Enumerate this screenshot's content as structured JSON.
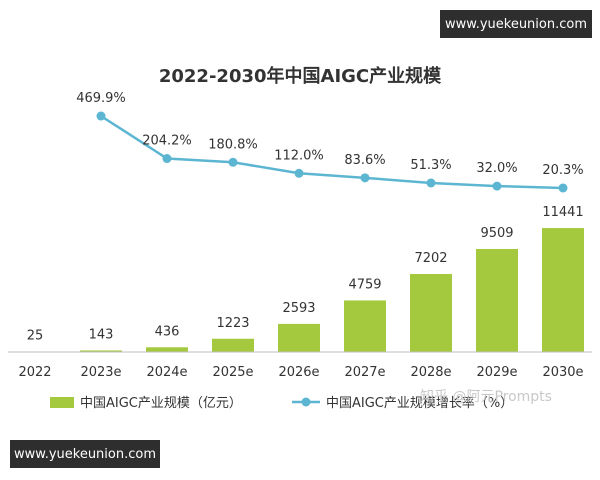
{
  "watermark_top": "www.yuekeunion.com",
  "watermark_bottom": "www.yuekeunion.com",
  "watermark_zhihu": "知乎 @阿元Prompts",
  "colors": {
    "bar": "#a5c93e",
    "line": "#5cb6d2",
    "text": "#333333",
    "axis": "#bfbfbf"
  },
  "chart_data": {
    "type": "bar",
    "title": "2022-2030年中国AIGC产业规模",
    "categories": [
      "2022",
      "2023e",
      "2024e",
      "2025e",
      "2026e",
      "2027e",
      "2028e",
      "2029e",
      "2030e"
    ],
    "series": [
      {
        "name": "中国AIGC产业规模（亿元）",
        "type": "bar",
        "values": [
          25,
          143,
          436,
          1223,
          2593,
          4759,
          7202,
          9509,
          11441
        ]
      },
      {
        "name": "中国AIGC产业规模增长率（%）",
        "type": "line",
        "values": [
          null,
          469.9,
          204.2,
          180.8,
          112.0,
          83.6,
          51.3,
          32.0,
          20.3
        ]
      }
    ],
    "bar_labels": [
      "25",
      "143",
      "436",
      "1223",
      "2593",
      "4759",
      "7202",
      "9509",
      "11441"
    ],
    "line_labels": [
      "469.9%",
      "204.2%",
      "180.8%",
      "112.0%",
      "83.6%",
      "51.3%",
      "32.0%",
      "20.3%"
    ],
    "legend_position": "bottom",
    "grid": false
  }
}
